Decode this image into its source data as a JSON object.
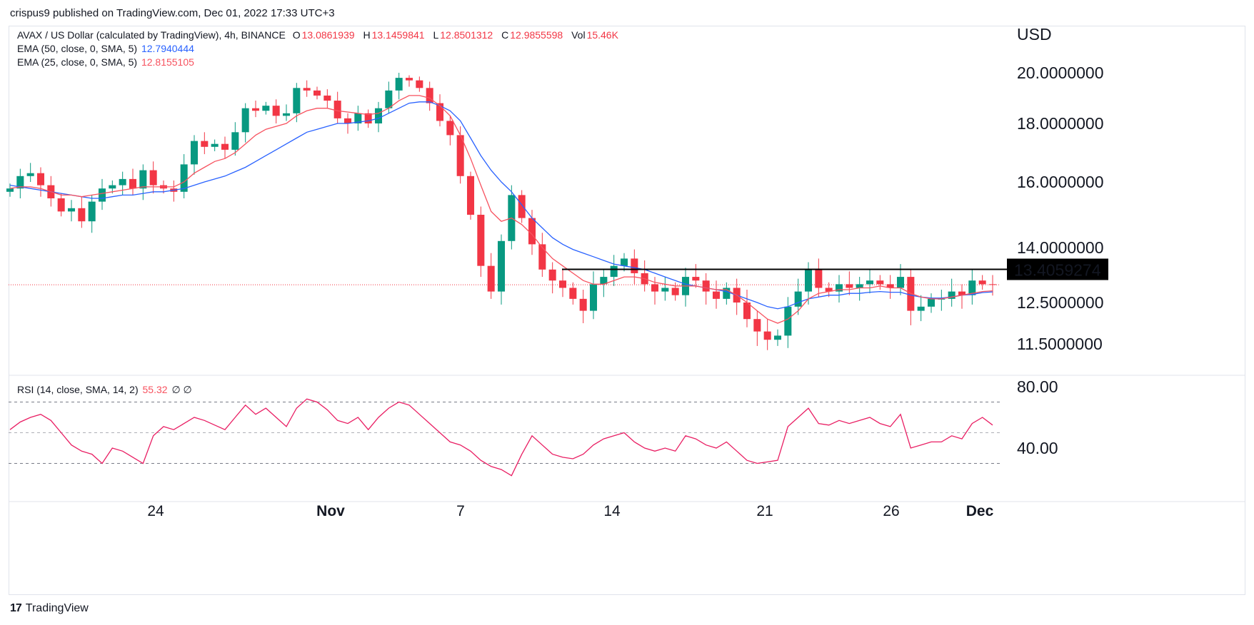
{
  "header": {
    "published": "crispus9 published on TradingView.com, Dec 01, 2022 17:33 UTC+3"
  },
  "legend": {
    "symbol": "AVAX / US Dollar (calculated by TradingView), 4h, BINANCE",
    "o_label": "O",
    "o_value": "13.0861939",
    "h_label": "H",
    "h_value": "13.1459841",
    "l_label": "L",
    "l_value": "12.8501312",
    "c_label": "C",
    "c_value": "12.9855598",
    "vol_label": "Vol",
    "vol_value": "15.46K",
    "ema50_label": "EMA (50, close, 0, SMA, 5)",
    "ema50_value": "12.7940444",
    "ema25_label": "EMA (25, close, 0, SMA, 5)",
    "ema25_value": "12.8155105",
    "rsi_label": "RSI (14, close, SMA, 14, 2)",
    "rsi_value": "55.32",
    "rsi_extra": "∅ ∅"
  },
  "footer": {
    "logo_icon": "tradingview-logo-icon",
    "brand": "TradingView"
  },
  "colors": {
    "up": "#089981",
    "down": "#f23645",
    "ema50": "#2962ff",
    "ema25": "#f7525f",
    "rsi": "#e91e63",
    "resistance": "#000000",
    "price_line": "#f23645"
  },
  "chart_data": [
    {
      "type": "candlestick",
      "currency_label": "USD",
      "y_ticks": [
        "20.0000000",
        "18.0000000",
        "16.0000000",
        "14.0000000",
        "12.5000000",
        "11.5000000"
      ],
      "y_tick_values": [
        20,
        18,
        16,
        14,
        12.5,
        11.5
      ],
      "x_ticks": [
        "24",
        "Nov",
        "7",
        "14",
        "21",
        "26",
        "Dec"
      ],
      "resistance_label": "13.4059274",
      "resistance_value": 13.4059274,
      "last_close": 12.9855598,
      "close_path": [
        15.8,
        16.2,
        16.3,
        15.9,
        15.5,
        15.1,
        15.2,
        14.8,
        15.4,
        15.8,
        15.9,
        16.1,
        15.8,
        16.4,
        15.9,
        15.8,
        15.7,
        16.6,
        17.4,
        17.2,
        17.3,
        17.1,
        17.7,
        18.6,
        18.5,
        18.7,
        18.3,
        18.4,
        19.4,
        19.3,
        19.1,
        18.9,
        18.2,
        18.0,
        18.4,
        18.0,
        18.6,
        19.3,
        19.8,
        19.7,
        19.4,
        18.8,
        18.1,
        17.6,
        16.2,
        15.0,
        13.5,
        12.8,
        14.2,
        15.6,
        14.9,
        14.1,
        13.4,
        13.1,
        12.9,
        12.6,
        12.3,
        13.0,
        13.2,
        13.5,
        13.7,
        13.3,
        13.0,
        12.8,
        12.9,
        12.7,
        13.2,
        13.1,
        12.8,
        12.6,
        12.9,
        12.5,
        12.1,
        11.8,
        11.6,
        11.7,
        12.4,
        12.8,
        13.4,
        12.9,
        12.8,
        13.0,
        12.9,
        13.0,
        13.1,
        13.0,
        12.9,
        13.2,
        12.3,
        12.4,
        12.6,
        12.6,
        12.8,
        12.7,
        13.1,
        13.0,
        12.99
      ],
      "ema25": [
        15.8,
        15.85,
        15.85,
        15.8,
        15.7,
        15.6,
        15.6,
        15.55,
        15.6,
        15.65,
        15.7,
        15.75,
        15.8,
        15.85,
        15.85,
        15.85,
        15.85,
        16.0,
        16.3,
        16.5,
        16.7,
        16.8,
        17.0,
        17.3,
        17.6,
        17.8,
        17.9,
        18.0,
        18.3,
        18.5,
        18.6,
        18.6,
        18.5,
        18.45,
        18.4,
        18.35,
        18.4,
        18.6,
        18.9,
        19.1,
        19.1,
        19.0,
        18.7,
        18.3,
        17.6,
        16.8,
        15.9,
        15.1,
        14.8,
        14.9,
        14.7,
        14.4,
        14.0,
        13.7,
        13.5,
        13.3,
        13.1,
        13.0,
        13.0,
        13.1,
        13.2,
        13.2,
        13.15,
        13.05,
        13.0,
        12.95,
        12.95,
        12.95,
        12.9,
        12.85,
        12.85,
        12.7,
        12.5,
        12.3,
        12.1,
        12.0,
        12.1,
        12.3,
        12.6,
        12.75,
        12.8,
        12.85,
        12.85,
        12.9,
        12.9,
        12.95,
        12.9,
        12.9,
        12.75,
        12.65,
        12.6,
        12.6,
        12.65,
        12.7,
        12.75,
        12.8,
        12.82
      ],
      "ema50": [
        15.9,
        15.85,
        15.8,
        15.75,
        15.7,
        15.65,
        15.6,
        15.55,
        15.5,
        15.5,
        15.55,
        15.6,
        15.6,
        15.65,
        15.7,
        15.7,
        15.75,
        15.8,
        15.9,
        16.0,
        16.1,
        16.2,
        16.35,
        16.5,
        16.7,
        16.9,
        17.1,
        17.3,
        17.5,
        17.7,
        17.8,
        17.9,
        18.0,
        18.0,
        18.05,
        18.1,
        18.2,
        18.4,
        18.6,
        18.8,
        18.85,
        18.85,
        18.7,
        18.5,
        18.1,
        17.5,
        16.9,
        16.4,
        16.0,
        15.7,
        15.3,
        14.9,
        14.6,
        14.3,
        14.1,
        13.95,
        13.85,
        13.75,
        13.65,
        13.55,
        13.5,
        13.45,
        13.4,
        13.3,
        13.2,
        13.1,
        13.0,
        12.95,
        12.9,
        12.85,
        12.8,
        12.7,
        12.6,
        12.5,
        12.4,
        12.35,
        12.4,
        12.5,
        12.6,
        12.65,
        12.7,
        12.7,
        12.75,
        12.75,
        12.78,
        12.8,
        12.78,
        12.78,
        12.7,
        12.65,
        12.62,
        12.62,
        12.65,
        12.7,
        12.72,
        12.77,
        12.79
      ]
    },
    {
      "type": "line",
      "name": "RSI",
      "y_ticks": [
        "80.00",
        "40.00"
      ],
      "y_tick_values": [
        80,
        40
      ],
      "bands": [
        70,
        50,
        30
      ],
      "values": [
        52,
        57,
        60,
        62,
        58,
        50,
        42,
        38,
        36,
        30,
        40,
        38,
        34,
        30,
        48,
        54,
        52,
        56,
        60,
        58,
        55,
        52,
        60,
        68,
        62,
        66,
        60,
        54,
        66,
        72,
        70,
        65,
        58,
        56,
        60,
        52,
        60,
        66,
        70,
        68,
        62,
        56,
        50,
        44,
        42,
        38,
        32,
        28,
        26,
        22,
        36,
        48,
        42,
        36,
        34,
        33,
        36,
        42,
        46,
        48,
        50,
        44,
        40,
        38,
        40,
        38,
        48,
        46,
        42,
        40,
        44,
        38,
        32,
        30,
        31,
        32,
        54,
        60,
        66,
        56,
        55,
        58,
        56,
        58,
        60,
        56,
        54,
        62,
        40,
        42,
        44,
        44,
        48,
        46,
        56,
        60,
        55
      ]
    }
  ]
}
